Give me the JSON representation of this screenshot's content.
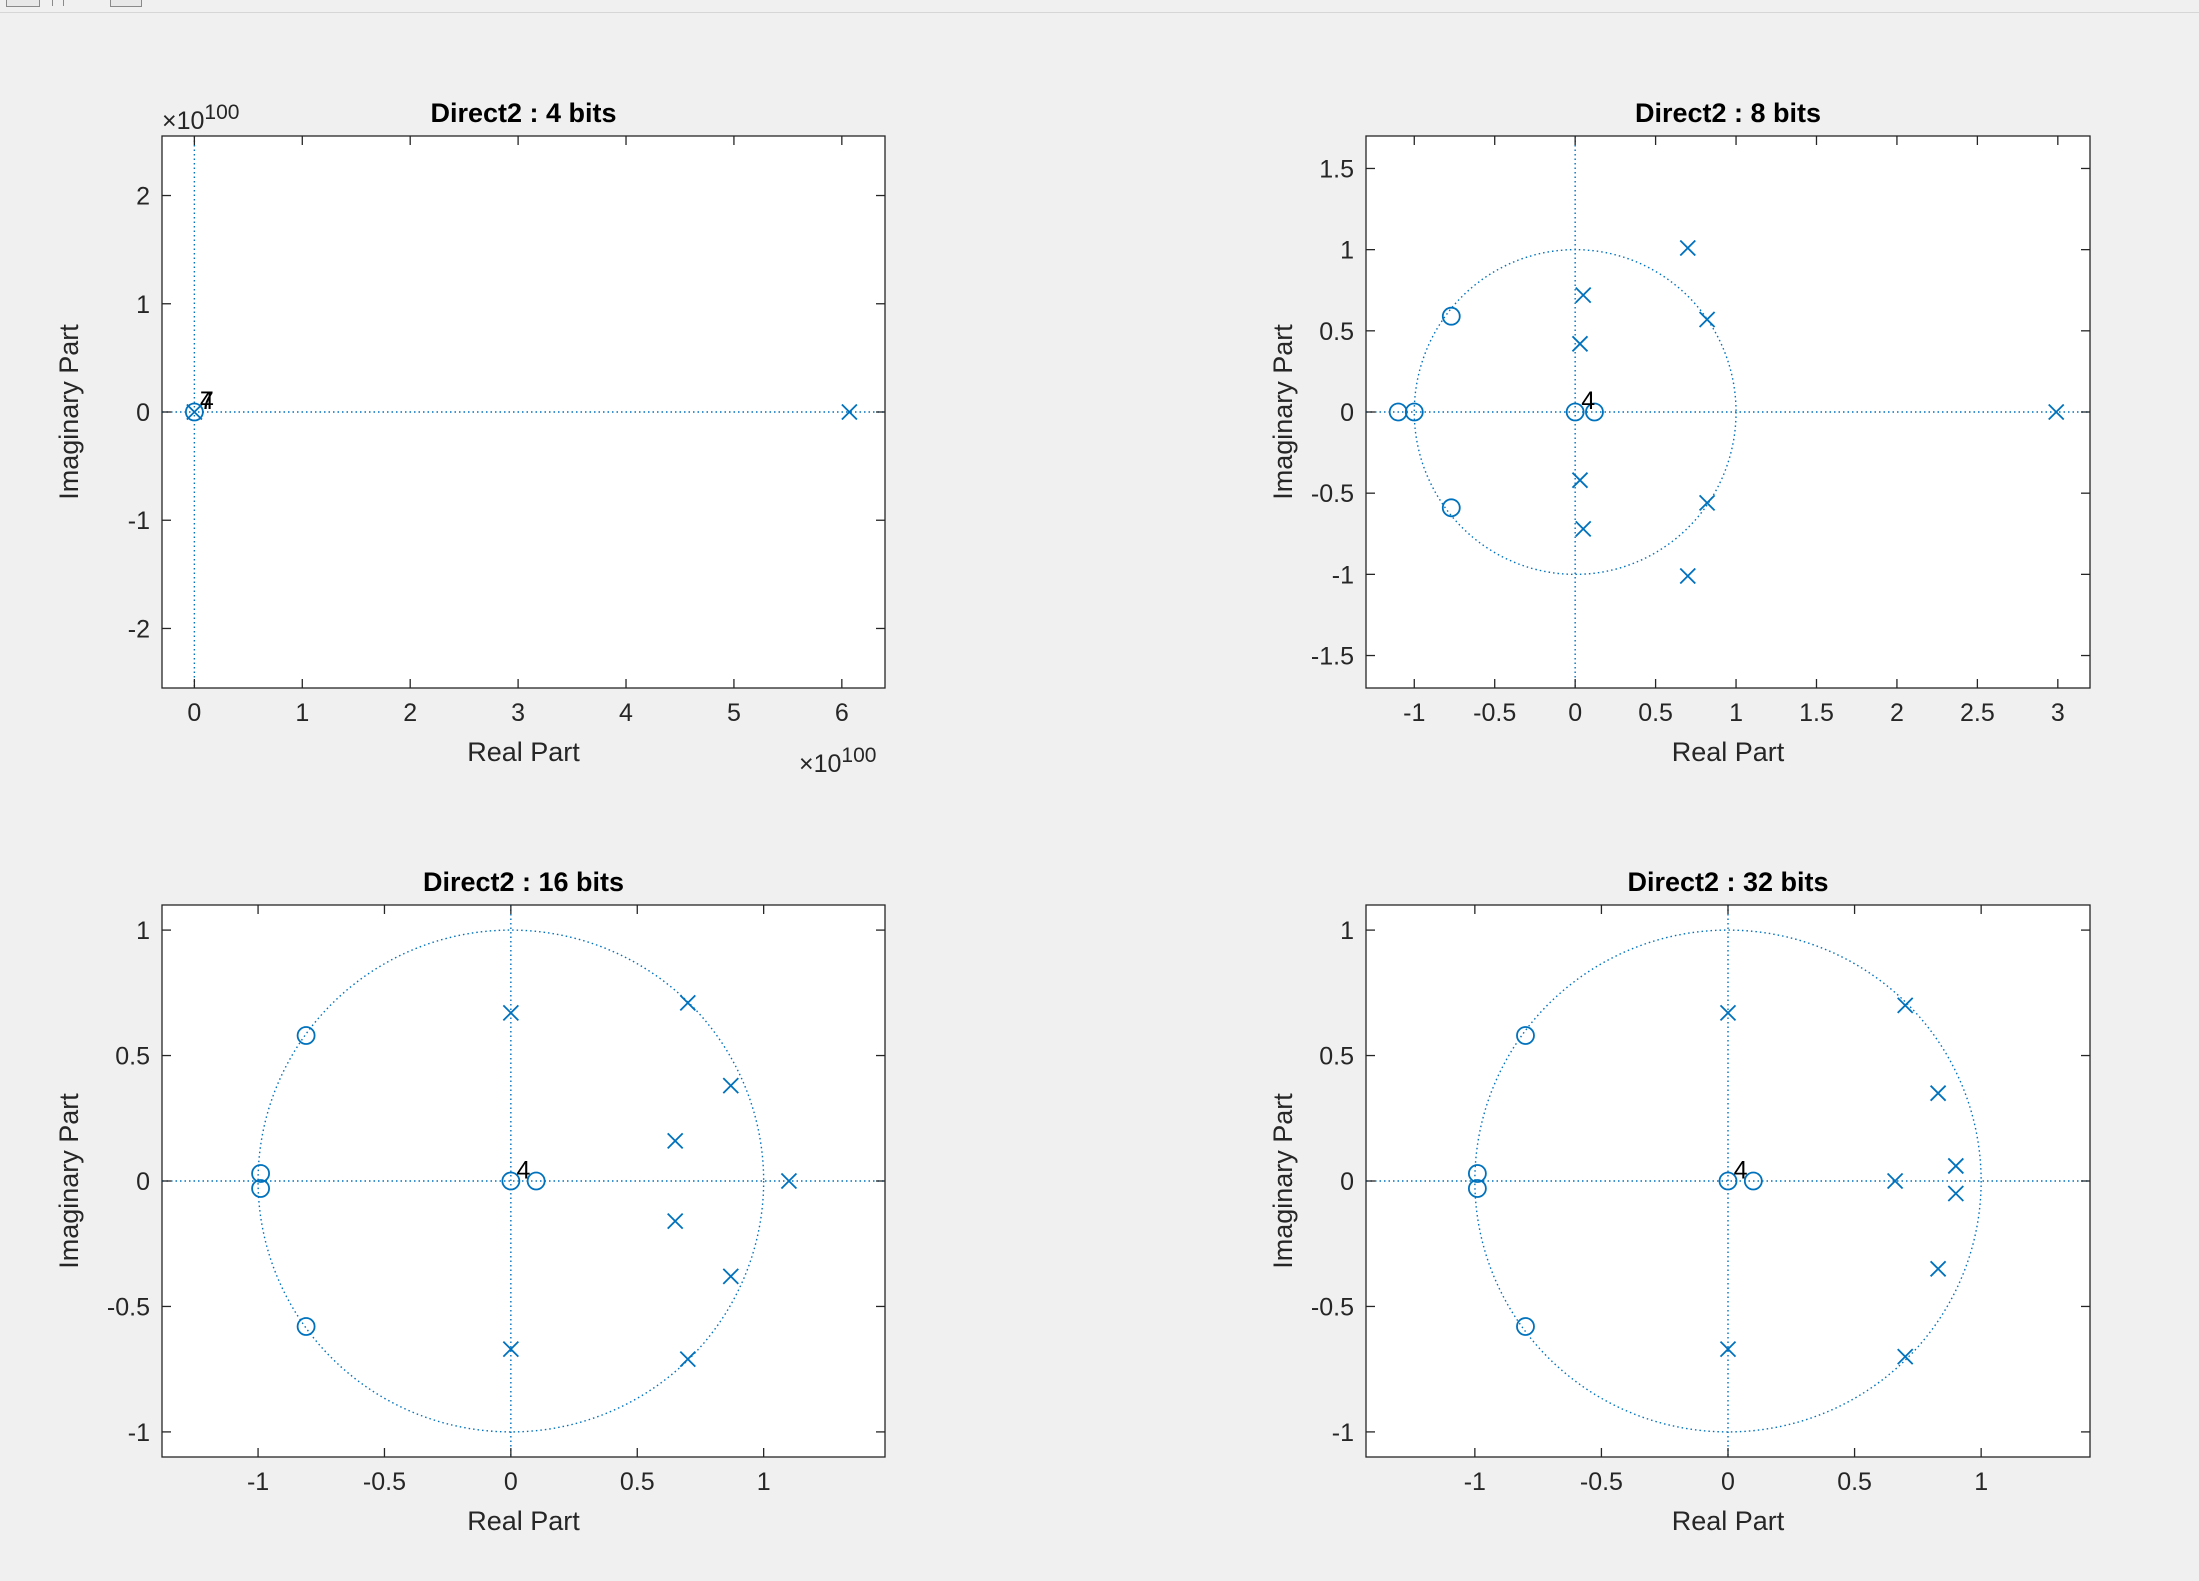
{
  "colors": {
    "marker": "#0072BD",
    "axes": "#262626",
    "background": "#f0f0f0",
    "plot_background": "#ffffff"
  },
  "chart_data": [
    {
      "type": "scatter",
      "title": "Direct2 : 4 bits",
      "xlabel": "Real Part",
      "ylabel": "Imaginary Part",
      "xlim": [
        -0.3,
        6.4
      ],
      "ylim": [
        -2.55,
        2.55
      ],
      "xticks": [
        0,
        1,
        2,
        3,
        4,
        5,
        6
      ],
      "yticks": [
        -2,
        -1,
        0,
        1,
        2
      ],
      "x_exponent": "×10^100",
      "y_exponent": "×10^100",
      "unit_circle": false,
      "zeros": [
        [
          0,
          0
        ]
      ],
      "poles": [
        [
          0,
          0
        ],
        [
          6.07,
          0
        ]
      ],
      "multiplicity_labels": [
        {
          "x": 0.07,
          "y": 0.12,
          "text": "4"
        },
        {
          "x": 0.07,
          "y": 0.12,
          "text": "7"
        }
      ]
    },
    {
      "type": "scatter",
      "title": "Direct2 : 8 bits",
      "xlabel": "Real Part",
      "ylabel": "Imaginary Part",
      "xlim": [
        -1.3,
        3.2
      ],
      "ylim": [
        -1.7,
        1.7
      ],
      "xticks": [
        -1,
        -0.5,
        0,
        0.5,
        1,
        1.5,
        2,
        2.5,
        3
      ],
      "yticks": [
        -1.5,
        -1,
        -0.5,
        0,
        0.5,
        1,
        1.5
      ],
      "unit_circle": true,
      "zeros": [
        [
          -1.1,
          0
        ],
        [
          -1.0,
          0
        ],
        [
          -0.77,
          0.59
        ],
        [
          -0.77,
          -0.59
        ],
        [
          0,
          0
        ],
        [
          0.12,
          0
        ]
      ],
      "poles": [
        [
          0.05,
          0.72
        ],
        [
          0.03,
          0.42
        ],
        [
          0.03,
          -0.42
        ],
        [
          0.05,
          -0.72
        ],
        [
          0.7,
          1.01
        ],
        [
          0.82,
          0.57
        ],
        [
          0.82,
          -0.56
        ],
        [
          0.7,
          -1.01
        ],
        [
          2.99,
          0
        ]
      ],
      "multiplicity_labels": [
        {
          "x": 0.05,
          "y": 0.08,
          "text": "4"
        }
      ]
    },
    {
      "type": "scatter",
      "title": "Direct2 : 16 bits",
      "xlabel": "Real Part",
      "ylabel": "Imaginary Part",
      "xlim": [
        -1.38,
        1.48
      ],
      "ylim": [
        -1.1,
        1.1
      ],
      "xticks": [
        -1,
        -0.5,
        0,
        0.5,
        1
      ],
      "yticks": [
        -1,
        -0.5,
        0,
        0.5,
        1
      ],
      "unit_circle": true,
      "zeros": [
        [
          -0.81,
          0.58
        ],
        [
          -0.99,
          0.03
        ],
        [
          -0.99,
          -0.03
        ],
        [
          -0.81,
          -0.58
        ],
        [
          0,
          0
        ],
        [
          0.1,
          0
        ]
      ],
      "poles": [
        [
          0,
          0.67
        ],
        [
          0,
          -0.67
        ],
        [
          0.7,
          0.71
        ],
        [
          0.87,
          0.38
        ],
        [
          0.65,
          0.16
        ],
        [
          0.65,
          -0.16
        ],
        [
          0.87,
          -0.38
        ],
        [
          0.7,
          -0.71
        ],
        [
          1.1,
          0
        ]
      ],
      "multiplicity_labels": [
        {
          "x": 0.03,
          "y": 0.05,
          "text": "4"
        }
      ]
    },
    {
      "type": "scatter",
      "title": "Direct2 : 32 bits",
      "xlabel": "Real Part",
      "ylabel": "Imaginary Part",
      "xlim": [
        -1.43,
        1.43
      ],
      "ylim": [
        -1.1,
        1.1
      ],
      "xticks": [
        -1,
        -0.5,
        0,
        0.5,
        1
      ],
      "yticks": [
        -1,
        -0.5,
        0,
        0.5,
        1
      ],
      "unit_circle": true,
      "zeros": [
        [
          -0.8,
          0.58
        ],
        [
          -0.99,
          0.03
        ],
        [
          -0.99,
          -0.03
        ],
        [
          -0.8,
          -0.58
        ],
        [
          0,
          0
        ],
        [
          0.1,
          0
        ]
      ],
      "poles": [
        [
          0,
          0.67
        ],
        [
          0,
          -0.67
        ],
        [
          0.7,
          0.7
        ],
        [
          0.83,
          0.35
        ],
        [
          0.9,
          0.06
        ],
        [
          0.66,
          0
        ],
        [
          0.9,
          -0.05
        ],
        [
          0.83,
          -0.35
        ],
        [
          0.7,
          -0.7
        ]
      ],
      "multiplicity_labels": [
        {
          "x": 0.03,
          "y": 0.05,
          "text": "4"
        }
      ]
    }
  ]
}
